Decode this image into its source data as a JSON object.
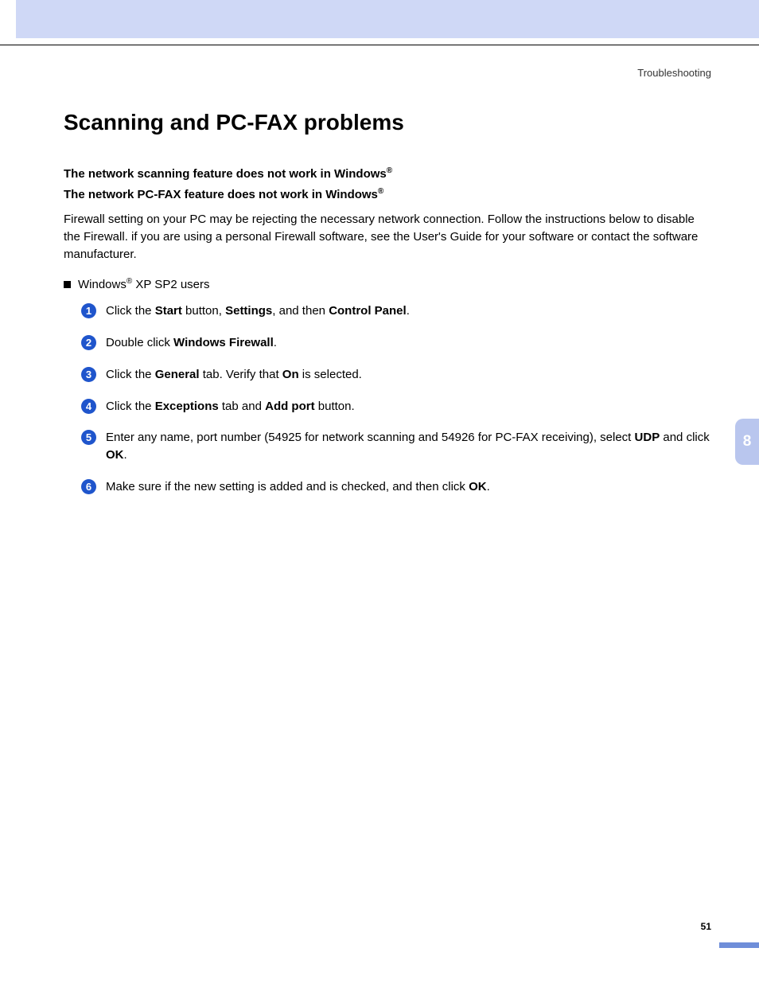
{
  "colors": {
    "header_bg": "#cfd8f6",
    "divider": "#000000",
    "step_circle": "#1f55cc",
    "side_tab_bg": "#b9c6ee",
    "footer_bar": "#6f8ed9",
    "text": "#000000"
  },
  "header": {
    "breadcrumb": "Troubleshooting"
  },
  "title": "Scanning and PC-FAX problems",
  "subheads": {
    "line1_a": "The network scanning feature does not work in Windows",
    "line2_a": "The network PC-FAX feature does not work in Windows",
    "reg": "®"
  },
  "intro": "Firewall setting on your PC may be rejecting the necessary network connection. Follow the instructions below to disable the Firewall. if you are using a personal Firewall software, see the User's Guide for your software or contact the software manufacturer.",
  "bullet": {
    "prefix": "Windows",
    "reg": "®",
    "suffix": " XP SP2 users"
  },
  "steps": [
    {
      "n": "1",
      "parts": [
        {
          "t": "Click the "
        },
        {
          "t": "Start",
          "b": true
        },
        {
          "t": " button, "
        },
        {
          "t": "Settings",
          "b": true
        },
        {
          "t": ", and then "
        },
        {
          "t": "Control Panel",
          "b": true
        },
        {
          "t": "."
        }
      ]
    },
    {
      "n": "2",
      "parts": [
        {
          "t": "Double click "
        },
        {
          "t": "Windows Firewall",
          "b": true
        },
        {
          "t": "."
        }
      ]
    },
    {
      "n": "3",
      "parts": [
        {
          "t": "Click the "
        },
        {
          "t": "General",
          "b": true
        },
        {
          "t": " tab. Verify that "
        },
        {
          "t": "On",
          "b": true
        },
        {
          "t": " is selected."
        }
      ]
    },
    {
      "n": "4",
      "parts": [
        {
          "t": "Click the "
        },
        {
          "t": "Exceptions",
          "b": true
        },
        {
          "t": " tab and "
        },
        {
          "t": "Add port",
          "b": true
        },
        {
          "t": " button."
        }
      ]
    },
    {
      "n": "5",
      "parts": [
        {
          "t": "Enter any name, port number (54925 for network scanning and 54926 for PC-FAX receiving), select "
        },
        {
          "t": "UDP",
          "b": true
        },
        {
          "t": " and click "
        },
        {
          "t": "OK",
          "b": true
        },
        {
          "t": "."
        }
      ]
    },
    {
      "n": "6",
      "parts": [
        {
          "t": "Make sure if the new setting is added and is checked, and then click "
        },
        {
          "t": "OK",
          "b": true
        },
        {
          "t": "."
        }
      ]
    }
  ],
  "side_tab": "8",
  "page_number": "51"
}
